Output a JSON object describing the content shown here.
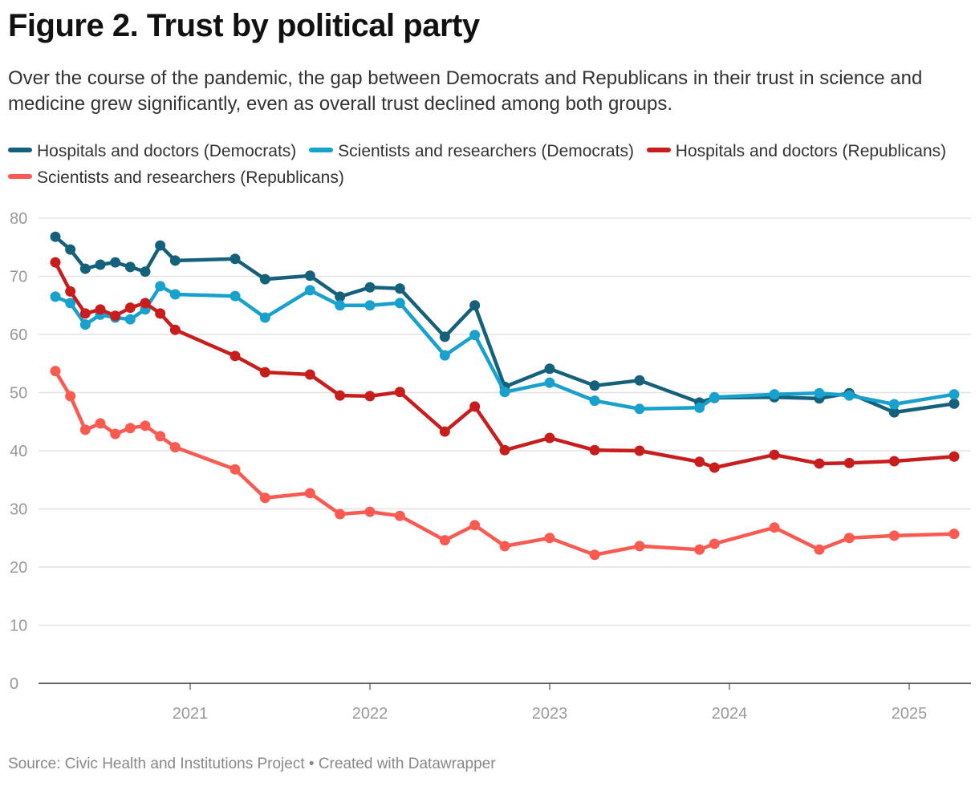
{
  "title": "Figure 2. Trust by political party",
  "subtitle": "Over the course of the pandemic, the gap between Democrats and Republicans in their trust in science and medicine grew significantly, even as overall trust declined among both groups.",
  "source": "Source: Civic Health and Institutions Project • Created with Datawrapper",
  "chart_data": {
    "type": "line",
    "title": "Figure 2. Trust by political party",
    "xlabel": "",
    "ylabel": "",
    "ylim": [
      0,
      80
    ],
    "yticks": [
      "0",
      "10",
      "20",
      "30",
      "40",
      "50",
      "60",
      "70",
      "80"
    ],
    "xticks": [
      "2021",
      "2022",
      "2023",
      "2024",
      "2025"
    ],
    "grid": true,
    "legend": "top",
    "x": [
      "2020-04",
      "2020-05",
      "2020-06",
      "2020-07",
      "2020-08",
      "2020-09",
      "2020-10",
      "2020-11",
      "2020-12",
      "2021-04",
      "2021-06",
      "2021-09",
      "2021-11",
      "2022-01",
      "2022-03",
      "2022-06",
      "2022-08",
      "2022-10",
      "2023-01",
      "2023-04",
      "2023-07",
      "2023-11",
      "2023-12",
      "2024-04",
      "2024-07",
      "2024-09",
      "2024-12",
      "2025-04"
    ],
    "series": [
      {
        "name": "Hospitals and doctors (Democrats)",
        "color": "#15607a",
        "values": [
          76.8,
          74.6,
          71.3,
          72.0,
          72.4,
          71.6,
          70.8,
          75.3,
          72.7,
          73.0,
          69.5,
          70.1,
          66.5,
          68.1,
          67.9,
          59.6,
          65.0,
          51.0,
          54.1,
          51.2,
          52.1,
          48.3,
          49.1,
          49.2,
          49.0,
          49.9,
          46.6,
          48.1
        ]
      },
      {
        "name": "Scientists and researchers (Democrats)",
        "color": "#18a1cd",
        "values": [
          66.5,
          65.4,
          61.7,
          63.4,
          62.9,
          62.6,
          64.3,
          68.3,
          66.9,
          66.6,
          62.9,
          67.6,
          65.0,
          65.0,
          65.4,
          56.4,
          59.9,
          50.1,
          51.7,
          48.6,
          47.2,
          47.4,
          49.2,
          49.7,
          49.9,
          49.5,
          48.0,
          49.7
        ]
      },
      {
        "name": "Hospitals and doctors (Republicans)",
        "color": "#c71e1d",
        "values": [
          72.4,
          67.4,
          63.6,
          64.3,
          63.2,
          64.6,
          65.4,
          63.6,
          60.8,
          56.3,
          53.5,
          53.1,
          49.5,
          49.4,
          50.1,
          43.3,
          47.6,
          40.1,
          42.2,
          40.1,
          40.0,
          38.1,
          37.1,
          39.3,
          37.8,
          37.9,
          38.2,
          39.0
        ]
      },
      {
        "name": "Scientists and researchers (Republicans)",
        "color": "#fa5a50",
        "values": [
          53.7,
          49.4,
          43.6,
          44.7,
          42.9,
          43.9,
          44.3,
          42.5,
          40.6,
          36.8,
          31.9,
          32.7,
          29.1,
          29.5,
          28.8,
          24.6,
          27.2,
          23.6,
          25.0,
          22.1,
          23.6,
          23.0,
          24.0,
          26.8,
          23.0,
          25.0,
          25.4,
          25.7
        ]
      }
    ]
  }
}
